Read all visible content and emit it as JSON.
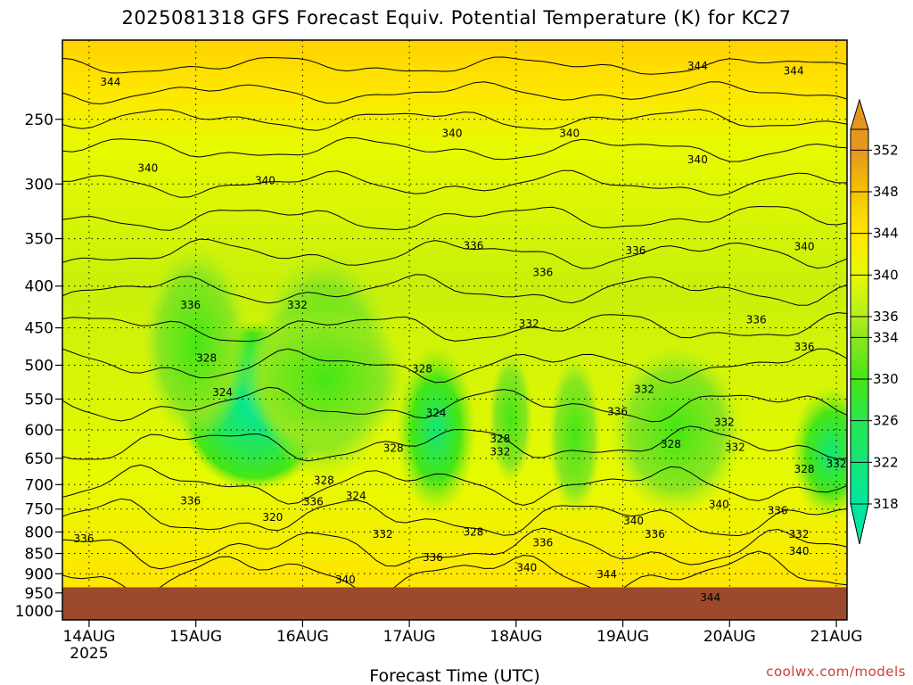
{
  "chart_data": {
    "type": "heatmap",
    "title": "2025081318 GFS Forecast Equiv. Potential Temperature (K) for KC27",
    "xlabel": "Forecast Time (UTC)",
    "ylabel": "",
    "x_start_label": "14AUG 2025",
    "x_ticks": [
      {
        "day": 0,
        "label": "14AUG",
        "sub": "2025"
      },
      {
        "day": 1,
        "label": "15AUG",
        "sub": ""
      },
      {
        "day": 2,
        "label": "16AUG",
        "sub": ""
      },
      {
        "day": 3,
        "label": "17AUG",
        "sub": ""
      },
      {
        "day": 4,
        "label": "18AUG",
        "sub": ""
      },
      {
        "day": 5,
        "label": "19AUG",
        "sub": ""
      },
      {
        "day": 6,
        "label": "20AUG",
        "sub": ""
      },
      {
        "day": 7,
        "label": "21AUG",
        "sub": ""
      }
    ],
    "xlim_days": [
      -0.25,
      7.1
    ],
    "y_ticks": [
      250,
      300,
      350,
      400,
      450,
      500,
      550,
      600,
      650,
      700,
      750,
      800,
      850,
      900,
      950,
      1000
    ],
    "ylim_hpa": [
      200,
      1025
    ],
    "y_log_pressure": true,
    "surface_pressure_hpa": 935,
    "grid": true,
    "colorbar": {
      "levels": [
        318,
        322,
        326,
        330,
        334,
        336,
        340,
        344,
        348,
        352
      ],
      "range": [
        318,
        354
      ],
      "stops": [
        {
          "value": 318,
          "color": "#00e6a0"
        },
        {
          "value": 322,
          "color": "#14e678"
        },
        {
          "value": 326,
          "color": "#28e650"
        },
        {
          "value": 330,
          "color": "#46e614"
        },
        {
          "value": 334,
          "color": "#8ce61e"
        },
        {
          "value": 336,
          "color": "#b4ee1e"
        },
        {
          "value": 340,
          "color": "#e6fa00"
        },
        {
          "value": 344,
          "color": "#ffe600"
        },
        {
          "value": 348,
          "color": "#f5c300"
        },
        {
          "value": 352,
          "color": "#e6961e"
        }
      ]
    },
    "contour_labels": [
      {
        "day": 0.2,
        "p": 225,
        "value": 344
      },
      {
        "day": 5.7,
        "p": 215,
        "value": 344
      },
      {
        "day": 6.6,
        "p": 218,
        "value": 344
      },
      {
        "day": 3.4,
        "p": 260,
        "value": 340
      },
      {
        "day": 4.5,
        "p": 260,
        "value": 340
      },
      {
        "day": 5.7,
        "p": 280,
        "value": 340
      },
      {
        "day": 0.55,
        "p": 287,
        "value": 340
      },
      {
        "day": 1.65,
        "p": 297,
        "value": 340
      },
      {
        "day": 6.7,
        "p": 358,
        "value": 340
      },
      {
        "day": 3.6,
        "p": 357,
        "value": 336
      },
      {
        "day": 4.25,
        "p": 385,
        "value": 336
      },
      {
        "day": 5.12,
        "p": 362,
        "value": 336
      },
      {
        "day": 0.95,
        "p": 422,
        "value": 336
      },
      {
        "day": 1.95,
        "p": 422,
        "value": 332
      },
      {
        "day": 4.12,
        "p": 445,
        "value": 332
      },
      {
        "day": 6.25,
        "p": 440,
        "value": 336
      },
      {
        "day": 6.7,
        "p": 475,
        "value": 336
      },
      {
        "day": 1.1,
        "p": 490,
        "value": 328
      },
      {
        "day": 3.12,
        "p": 505,
        "value": 328
      },
      {
        "day": 5.2,
        "p": 535,
        "value": 332
      },
      {
        "day": 1.25,
        "p": 540,
        "value": 324
      },
      {
        "day": 3.25,
        "p": 572,
        "value": 324
      },
      {
        "day": 4.95,
        "p": 570,
        "value": 336
      },
      {
        "day": 5.95,
        "p": 587,
        "value": 332
      },
      {
        "day": 3.85,
        "p": 615,
        "value": 328
      },
      {
        "day": 3.85,
        "p": 638,
        "value": 332
      },
      {
        "day": 2.85,
        "p": 632,
        "value": 328
      },
      {
        "day": 5.45,
        "p": 625,
        "value": 328
      },
      {
        "day": 6.05,
        "p": 630,
        "value": 332
      },
      {
        "day": 7.0,
        "p": 660,
        "value": 332
      },
      {
        "day": 6.7,
        "p": 670,
        "value": 328
      },
      {
        "day": 2.2,
        "p": 692,
        "value": 328
      },
      {
        "day": 2.5,
        "p": 723,
        "value": 324
      },
      {
        "day": 0.95,
        "p": 733,
        "value": 336
      },
      {
        "day": 2.1,
        "p": 735,
        "value": 336
      },
      {
        "day": 5.9,
        "p": 740,
        "value": 340
      },
      {
        "day": 1.72,
        "p": 768,
        "value": 320
      },
      {
        "day": 6.45,
        "p": 753,
        "value": 336
      },
      {
        "day": 5.1,
        "p": 775,
        "value": 340
      },
      {
        "day": 2.75,
        "p": 805,
        "value": 332
      },
      {
        "day": 3.6,
        "p": 800,
        "value": 328
      },
      {
        "day": 5.3,
        "p": 805,
        "value": 336
      },
      {
        "day": 6.65,
        "p": 805,
        "value": 332
      },
      {
        "day": -0.05,
        "p": 815,
        "value": 336
      },
      {
        "day": 4.25,
        "p": 825,
        "value": 336
      },
      {
        "day": 6.65,
        "p": 845,
        "value": 340
      },
      {
        "day": 3.22,
        "p": 860,
        "value": 336
      },
      {
        "day": 4.1,
        "p": 885,
        "value": 340
      },
      {
        "day": 4.85,
        "p": 902,
        "value": 344
      },
      {
        "day": 2.4,
        "p": 915,
        "value": 340
      },
      {
        "day": 5.82,
        "p": 962,
        "value": 344
      }
    ]
  },
  "credit": "coolwx.com/models"
}
